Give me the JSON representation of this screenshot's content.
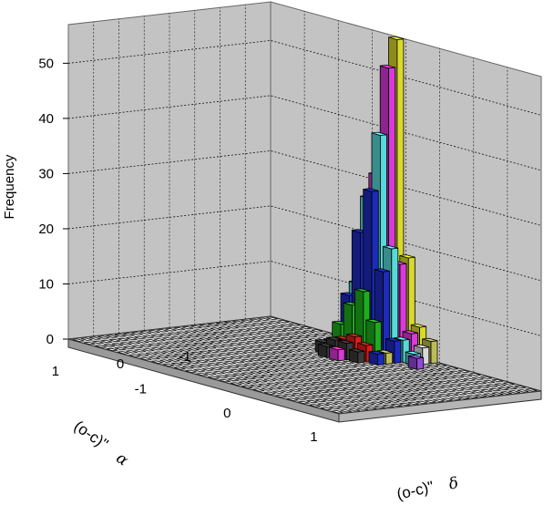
{
  "chart_data": {
    "type": "bar3d",
    "title": "",
    "ylabel": "Frequency",
    "x_axis_title": "(o-c)\"",
    "x_axis_symbol": "α",
    "z_axis_title": "(o-c)\"",
    "z_axis_symbol": "δ",
    "y_ticks": [
      "0",
      "10",
      "20",
      "30",
      "40",
      "50"
    ],
    "x_ticks": [
      "-1",
      "0",
      "1"
    ],
    "z_ticks": [
      "-1",
      "0",
      "1"
    ],
    "ylim": [
      0,
      57
    ],
    "grid": true,
    "colors": {
      "wall": "#c3c3c3",
      "floor": "#c8c8c8",
      "palette": [
        "#ffff33",
        "#ff44ff",
        "#66ffff",
        "#2233dd",
        "#22cc22",
        "#ff2222",
        "#444444",
        "#dddd66",
        "#ffffff",
        "#aa55ff"
      ]
    },
    "bars": [
      {
        "row": 0,
        "col": 11,
        "value": 57,
        "color": "yellow"
      },
      {
        "row": 0,
        "col": 10,
        "value": 27,
        "color": "yellow"
      },
      {
        "row": 0,
        "col": 12,
        "value": 18,
        "color": "yellow"
      },
      {
        "row": 0,
        "col": 9,
        "value": 8,
        "color": "yellow"
      },
      {
        "row": 0,
        "col": 13,
        "value": 6,
        "color": "yellow"
      },
      {
        "row": 1,
        "col": 11,
        "value": 52,
        "color": "magenta"
      },
      {
        "row": 1,
        "col": 10,
        "value": 32,
        "color": "magenta"
      },
      {
        "row": 1,
        "col": 12,
        "value": 17,
        "color": "magenta"
      },
      {
        "row": 1,
        "col": 9,
        "value": 10,
        "color": "magenta"
      },
      {
        "row": 1,
        "col": 13,
        "value": 5,
        "color": "magenta"
      },
      {
        "row": 2,
        "col": 11,
        "value": 40,
        "color": "cyan"
      },
      {
        "row": 2,
        "col": 10,
        "value": 28,
        "color": "cyan"
      },
      {
        "row": 2,
        "col": 12,
        "value": 20,
        "color": "cyan"
      },
      {
        "row": 2,
        "col": 9,
        "value": 12,
        "color": "cyan"
      },
      {
        "row": 2,
        "col": 13,
        "value": 4,
        "color": "cyan"
      },
      {
        "row": 3,
        "col": 11,
        "value": 30,
        "color": "blue"
      },
      {
        "row": 3,
        "col": 10,
        "value": 22,
        "color": "blue"
      },
      {
        "row": 3,
        "col": 12,
        "value": 16,
        "color": "blue"
      },
      {
        "row": 3,
        "col": 9,
        "value": 10,
        "color": "blue"
      },
      {
        "row": 3,
        "col": 13,
        "value": 4,
        "color": "blue"
      },
      {
        "row": 4,
        "col": 11,
        "value": 12,
        "color": "green"
      },
      {
        "row": 4,
        "col": 10,
        "value": 9,
        "color": "green"
      },
      {
        "row": 4,
        "col": 12,
        "value": 7,
        "color": "green"
      },
      {
        "row": 4,
        "col": 9,
        "value": 5,
        "color": "green"
      },
      {
        "row": 5,
        "col": 11,
        "value": 4,
        "color": "red"
      },
      {
        "row": 5,
        "col": 10,
        "value": 3,
        "color": "red"
      },
      {
        "row": 5,
        "col": 12,
        "value": 3,
        "color": "red"
      },
      {
        "row": 5,
        "col": 9,
        "value": 2,
        "color": "red"
      },
      {
        "row": 6,
        "col": 11,
        "value": 3,
        "color": "black"
      },
      {
        "row": 6,
        "col": 10,
        "value": 3,
        "color": "black"
      },
      {
        "row": 6,
        "col": 12,
        "value": 2,
        "color": "black"
      },
      {
        "row": 1,
        "col": 14,
        "value": 3,
        "color": "white"
      },
      {
        "row": 0,
        "col": 14,
        "value": 4,
        "color": "khaki"
      },
      {
        "row": 2,
        "col": 14,
        "value": 2,
        "color": "cyan"
      },
      {
        "row": 0,
        "col": 8,
        "value": 2,
        "color": "khaki"
      },
      {
        "row": 3,
        "col": 15,
        "value": 2,
        "color": "purple"
      },
      {
        "row": 4,
        "col": 13,
        "value": 2,
        "color": "khaki"
      },
      {
        "row": 5,
        "col": 13,
        "value": 2,
        "color": "blue"
      },
      {
        "row": 6,
        "col": 9,
        "value": 2,
        "color": "black"
      },
      {
        "row": 7,
        "col": 10,
        "value": 2,
        "color": "black"
      },
      {
        "row": 7,
        "col": 11,
        "value": 2,
        "color": "magenta"
      }
    ]
  }
}
